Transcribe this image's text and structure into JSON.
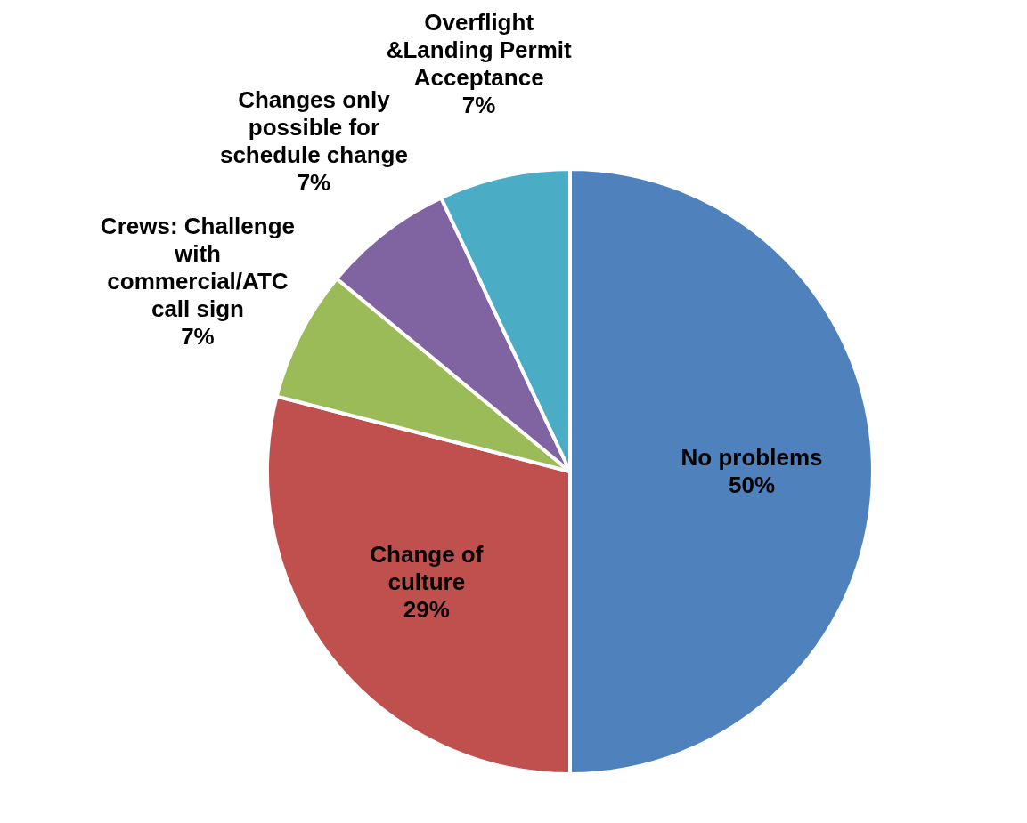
{
  "chart_data": {
    "type": "pie",
    "categories": [
      "No problems",
      "Change of culture",
      "Crews: Challenge with commercial/ATC call sign",
      "Changes only possible for schedule change",
      "Overflight &Landing Permit Acceptance"
    ],
    "values": [
      50,
      29,
      7,
      7,
      7
    ],
    "value_labels": [
      "50%",
      "29%",
      "7%",
      "7%",
      "7%"
    ],
    "colors": [
      "#4f81bd",
      "#c0504d",
      "#9bbb59",
      "#8064a2",
      "#4bacc6"
    ]
  }
}
